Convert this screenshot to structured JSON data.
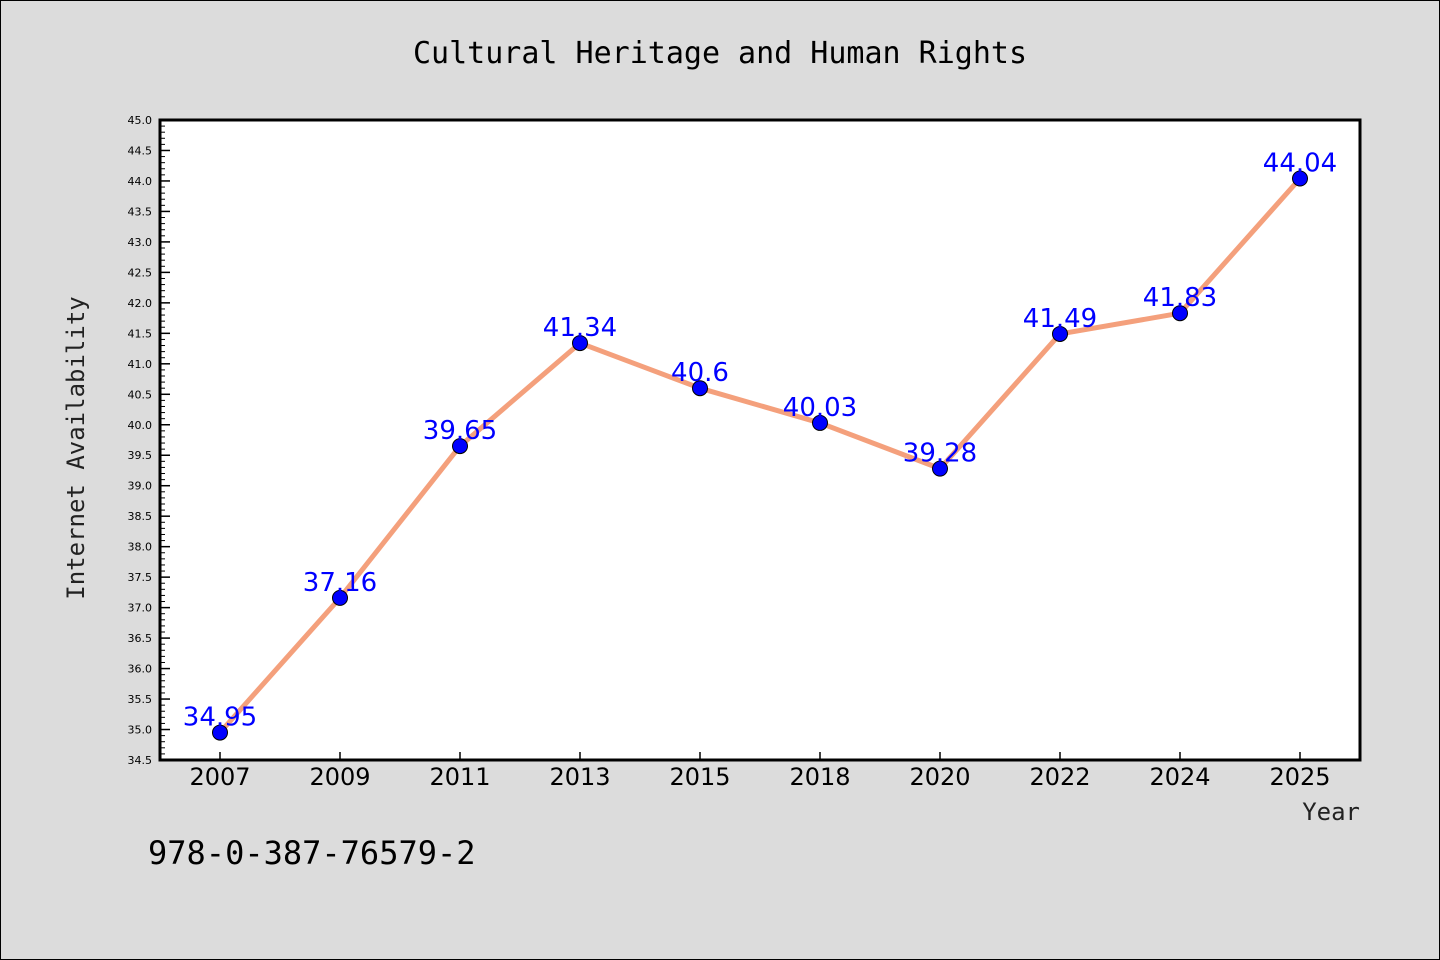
{
  "chart_data": {
    "type": "line",
    "title": "Cultural Heritage and Human Rights",
    "xlabel": "Year",
    "ylabel": "Internet Availability",
    "categories": [
      "2007",
      "2009",
      "2011",
      "2013",
      "2015",
      "2018",
      "2020",
      "2022",
      "2024",
      "2025"
    ],
    "values": [
      34.95,
      37.16,
      39.65,
      41.34,
      40.6,
      40.03,
      39.28,
      41.49,
      41.83,
      44.04
    ],
    "data_labels": [
      "34.95",
      "37.16",
      "39.65",
      "41.34",
      "40.6",
      "40.03",
      "39.28",
      "41.49",
      "41.83",
      "44.04"
    ],
    "ylim": [
      34.5,
      45.0
    ],
    "yticks": [
      "34.5",
      "35.0",
      "35.5",
      "36.0",
      "36.5",
      "37.0",
      "37.5",
      "38.0",
      "38.5",
      "39.0",
      "39.5",
      "40.0",
      "40.5",
      "41.0",
      "41.5",
      "42.0",
      "42.5",
      "43.0",
      "43.5",
      "44.0",
      "44.5",
      "45.0"
    ],
    "grid": false,
    "line_color": "#f4a07c",
    "marker_color": "#0000ff",
    "label_color": "#0000ff",
    "plot_background": "#ffffff",
    "figure_background": "#dcdcdc"
  },
  "footer": {
    "identifier": "978-0-387-76579-2"
  }
}
